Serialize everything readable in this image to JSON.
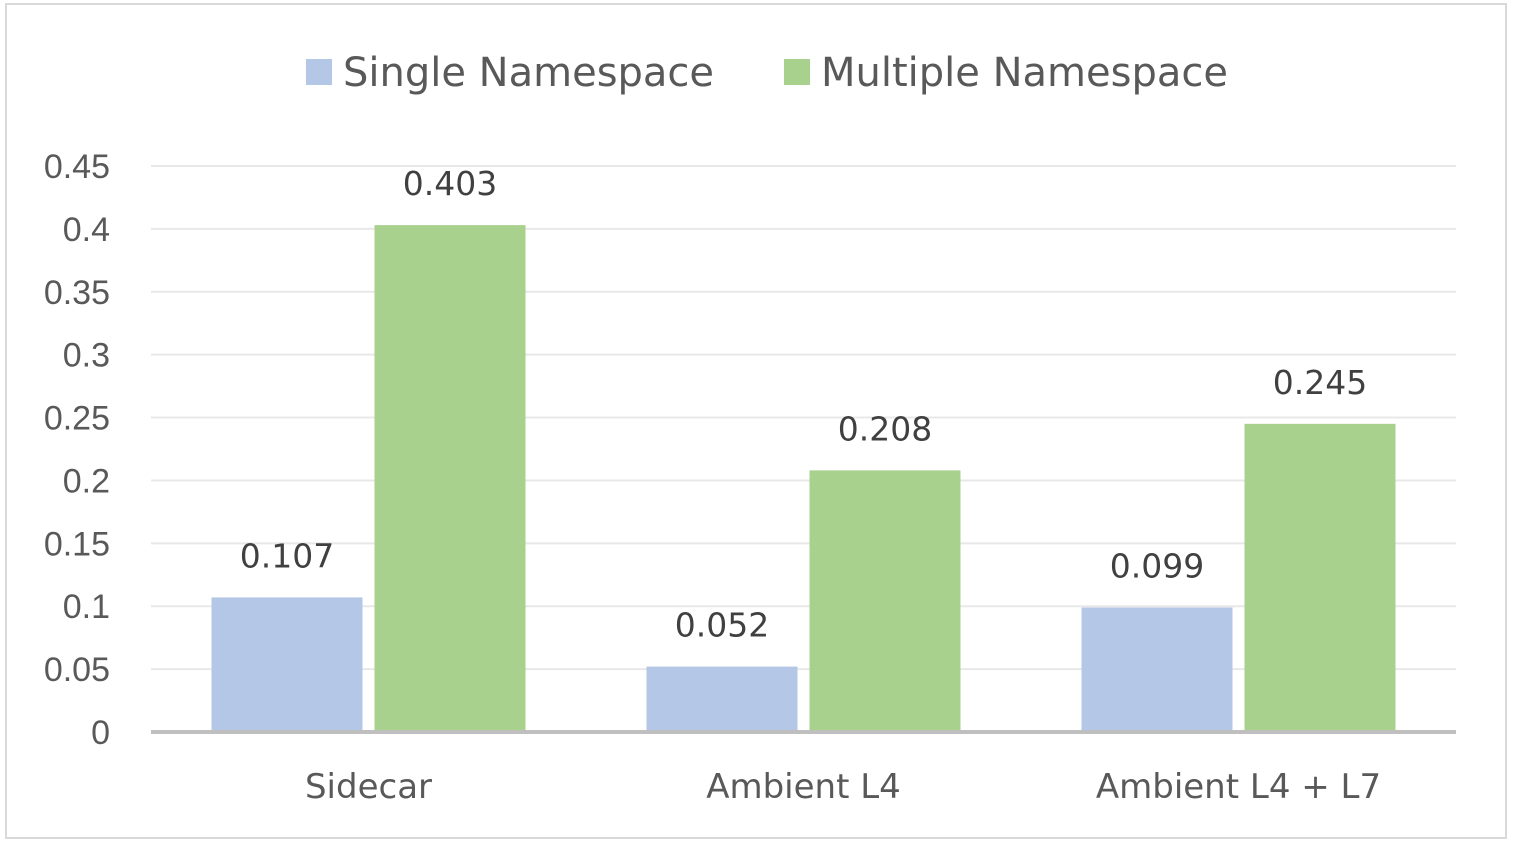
{
  "chart_data": {
    "type": "bar",
    "categories": [
      "Sidecar",
      "Ambient L4",
      "Ambient L4 + L7"
    ],
    "series": [
      {
        "name": "Single Namespace",
        "values": [
          0.107,
          0.052,
          0.099
        ],
        "labels": [
          "0.107",
          "0.052",
          "0.099"
        ],
        "color": "#b4c7e7"
      },
      {
        "name": "Multiple Namespace",
        "values": [
          0.403,
          0.208,
          0.245
        ],
        "labels": [
          "0.403",
          "0.208",
          "0.245"
        ],
        "color": "#a9d18e"
      }
    ],
    "title": "",
    "xlabel": "",
    "ylabel": "",
    "ylim": [
      0,
      0.45
    ],
    "yticks": [
      "0",
      "0.05",
      "0.1",
      "0.15",
      "0.2",
      "0.25",
      "0.3",
      "0.35",
      "0.4",
      "0.45"
    ],
    "grid": true,
    "legend_position": "top"
  }
}
